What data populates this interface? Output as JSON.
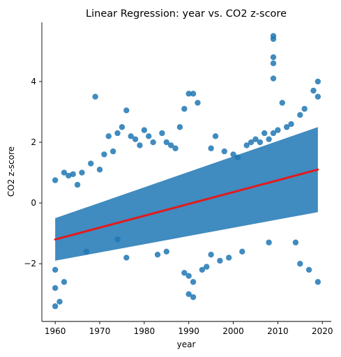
{
  "chart_data": {
    "type": "scatter",
    "title": "Linear Regression: year vs. CO2 z-score",
    "xlabel": "year",
    "ylabel": "CO2 z-score",
    "xlim": [
      1957,
      2022
    ],
    "ylim": [
      -3.9,
      5.95
    ],
    "x_ticks": [
      1960,
      1970,
      1980,
      1990,
      2000,
      2010,
      2020
    ],
    "x_tick_labels": [
      "1960",
      "1970",
      "1980",
      "1990",
      "2000",
      "2010",
      "2020"
    ],
    "y_ticks": [
      -2,
      0,
      2,
      4
    ],
    "y_tick_labels": [
      "−2",
      "0",
      "2",
      "4"
    ],
    "grid": false,
    "colors": {
      "points": "#1f77b4",
      "regression_line": "#e31a1c",
      "axis": "#000000"
    },
    "band": {
      "x_start": 1960,
      "x_end": 2019,
      "lower_start": -1.9,
      "lower_end": -0.3,
      "upper_start": -0.5,
      "upper_end": 2.5
    },
    "series": [
      {
        "name": "regression line",
        "kind": "line",
        "x": [
          1960,
          2019
        ],
        "y": [
          -1.2,
          1.1
        ]
      },
      {
        "kind": "scatter",
        "x": [
          1960,
          1960,
          1960,
          1960,
          1961,
          1962,
          1962,
          1963,
          1964,
          1965,
          1966,
          1967,
          1968,
          1969,
          1970,
          1971,
          1972,
          1973,
          1974,
          1975,
          1976,
          1976,
          1977,
          1978,
          1979,
          1980,
          1981,
          1982,
          1983,
          1984,
          1985,
          1986,
          1987,
          1988,
          1989,
          1989,
          1990,
          1990,
          1990,
          1991,
          1991,
          1991,
          1992,
          1993,
          1994,
          1995,
          1996,
          1997,
          1998,
          1999,
          2000,
          2001,
          2002,
          2003,
          2004,
          2005,
          2006,
          2007,
          2008,
          2008,
          2009,
          2009,
          2009,
          2009,
          2009,
          2009,
          2010,
          2011,
          2012,
          2013,
          2014,
          2015,
          2016,
          2017,
          2018,
          2019,
          2019,
          2019,
          1995,
          1985,
          1974,
          2015
        ],
        "y": [
          -3.4,
          -2.8,
          0.75,
          -2.2,
          -3.25,
          1.0,
          -2.6,
          0.9,
          0.95,
          0.6,
          1.0,
          -1.6,
          1.3,
          3.5,
          1.1,
          1.6,
          2.2,
          1.7,
          2.3,
          2.5,
          3.05,
          -1.8,
          2.2,
          2.1,
          1.9,
          2.4,
          2.2,
          2.0,
          -1.7,
          2.3,
          2.0,
          1.9,
          1.8,
          2.5,
          3.1,
          -2.3,
          3.6,
          -3.0,
          -2.4,
          3.6,
          -3.1,
          -2.6,
          3.3,
          -2.2,
          -2.1,
          1.8,
          2.2,
          -1.9,
          1.7,
          -1.8,
          1.6,
          1.5,
          -1.6,
          1.9,
          2.0,
          2.1,
          2.0,
          2.3,
          2.1,
          -1.3,
          5.5,
          5.4,
          4.8,
          4.6,
          4.1,
          2.3,
          2.4,
          3.3,
          2.5,
          2.6,
          -1.3,
          2.9,
          3.1,
          -2.2,
          3.7,
          4.0,
          3.5,
          -2.6,
          -1.7,
          -1.6,
          -1.2,
          -2.0
        ]
      }
    ]
  }
}
